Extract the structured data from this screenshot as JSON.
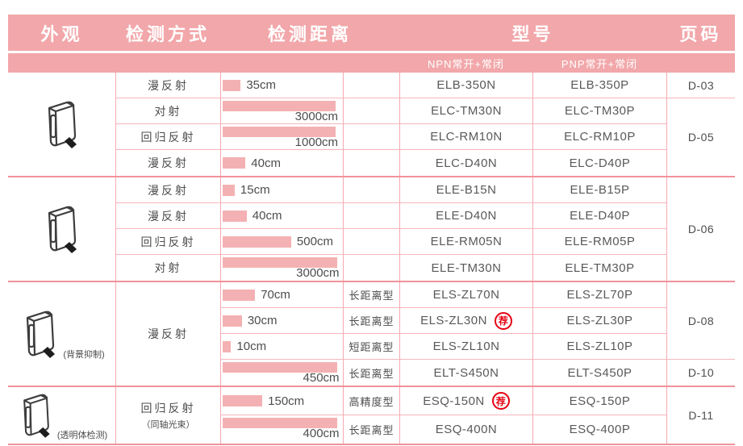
{
  "header": {
    "appearance": "外观",
    "method": "检测方式",
    "distance": "检测距离",
    "model": "型号",
    "page": "页码",
    "npn": "NPN常开+常闭",
    "pnp": "PNP常开+常闭"
  },
  "stamp": "荐",
  "colors": {
    "header_bg": "#F2A7AA",
    "bar": "#F4B1B3",
    "grid_line": "#F5A9B1",
    "group_separator": "#F0929B",
    "stamp_red": "#E60012",
    "text": "#4D4D4F"
  },
  "groups": [
    {
      "caption": "",
      "pages": [
        {
          "label": "D-03"
        },
        {
          "label": "D-05"
        }
      ],
      "rows": [
        {
          "method": "漫反射",
          "distance": "35cm",
          "bar_pct": 15,
          "type": "",
          "npn": "ELB-350N",
          "pnp": "ELB-350P"
        },
        {
          "method": "对射",
          "distance": "3000cm",
          "bar_pct": 94,
          "type": "",
          "npn": "ELC-TM30N",
          "pnp": "ELC-TM30P"
        },
        {
          "method": "回归反射",
          "distance": "1000cm",
          "bar_pct": 94,
          "type": "",
          "npn": "ELC-RM10N",
          "pnp": "ELC-RM10P"
        },
        {
          "method": "漫反射",
          "distance": "40cm",
          "bar_pct": 19,
          "type": "",
          "npn": "ELC-D40N",
          "pnp": "ELC-D40P"
        }
      ]
    },
    {
      "caption": "",
      "pages": [
        {
          "label": "D-06"
        }
      ],
      "rows": [
        {
          "method": "漫反射",
          "distance": "15cm",
          "bar_pct": 10,
          "type": "",
          "npn": "ELE-B15N",
          "pnp": "ELE-B15P"
        },
        {
          "method": "漫反射",
          "distance": "40cm",
          "bar_pct": 20,
          "type": "",
          "npn": "ELE-D40N",
          "pnp": "ELE-D40P"
        },
        {
          "method": "回归反射",
          "distance": "500cm",
          "bar_pct": 57,
          "type": "",
          "npn": "ELE-RM05N",
          "pnp": "ELE-RM05P"
        },
        {
          "method": "对射",
          "distance": "3000cm",
          "bar_pct": 95,
          "type": "",
          "npn": "ELE-TM30N",
          "pnp": "ELE-TM30P"
        }
      ]
    },
    {
      "caption": "(背景抑制)",
      "method_span": "漫反射",
      "method_sub": "",
      "pages": [
        {
          "label": "D-08"
        },
        {
          "label": "D-10"
        }
      ],
      "rows": [
        {
          "distance": "70cm",
          "bar_pct": 27,
          "type": "长距离型",
          "npn": "ELS-ZL70N",
          "pnp": "ELS-ZL70P"
        },
        {
          "distance": "30cm",
          "bar_pct": 16,
          "type": "长距离型",
          "npn": "ELS-ZL30N",
          "pnp": "ELS-ZL30P",
          "recommended": true
        },
        {
          "distance": "10cm",
          "bar_pct": 7,
          "type": "短距离型",
          "npn": "ELS-ZL10N",
          "pnp": "ELS-ZL10P"
        },
        {
          "distance": "450cm",
          "bar_pct": 95,
          "type": "长距离型",
          "npn": "ELT-S450N",
          "pnp": "ELT-S450P"
        }
      ]
    },
    {
      "caption": "(透明体检测)",
      "method_span": "回归反射",
      "method_sub": "（同轴光束）",
      "pages": [
        {
          "label": "D-11"
        }
      ],
      "rows": [
        {
          "distance": "150cm",
          "bar_pct": 33,
          "type": "高精度型",
          "npn": "ESQ-150N",
          "pnp": "ESQ-150P",
          "recommended": true
        },
        {
          "distance": "400cm",
          "bar_pct": 95,
          "type": "长距离型",
          "npn": "ESQ-400N",
          "pnp": "ESQ-400P"
        }
      ]
    }
  ]
}
